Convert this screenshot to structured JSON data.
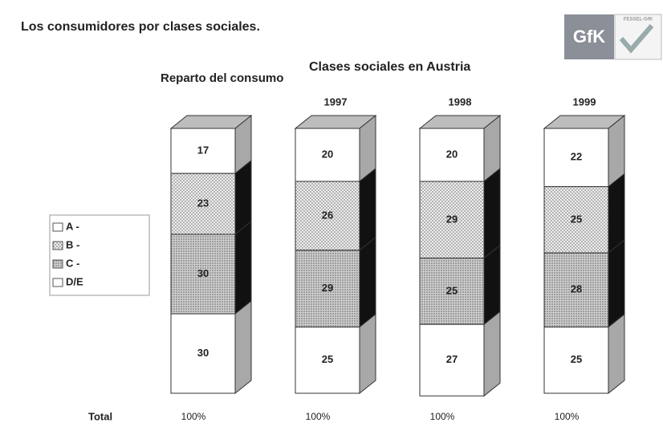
{
  "chart_data": {
    "type": "stacked-bar-3d",
    "title": "Los consumidores por clases sociales.",
    "subtitle": "Clases sociales en Austria",
    "logo": "GfK",
    "logo_caption": "FESSEL-GfK",
    "categories": [
      "Reparto del consumo",
      "1997",
      "1998",
      "1999"
    ],
    "series": [
      {
        "name": "A -",
        "color": "#ffffff",
        "values": [
          17,
          20,
          20,
          22
        ]
      },
      {
        "name": "B -",
        "color": "#e4e4e4",
        "values": [
          23,
          26,
          29,
          25
        ]
      },
      {
        "name": "C -",
        "color": "#c4c4c4",
        "values": [
          30,
          29,
          25,
          28
        ]
      },
      {
        "name": "D/E",
        "color": "#ffffff",
        "values": [
          30,
          25,
          27,
          25
        ]
      }
    ],
    "total_label": "Total",
    "totals": [
      100,
      100,
      100,
      100
    ],
    "totals_labels": [
      "100%",
      "100%",
      "100%",
      "100%"
    ]
  }
}
